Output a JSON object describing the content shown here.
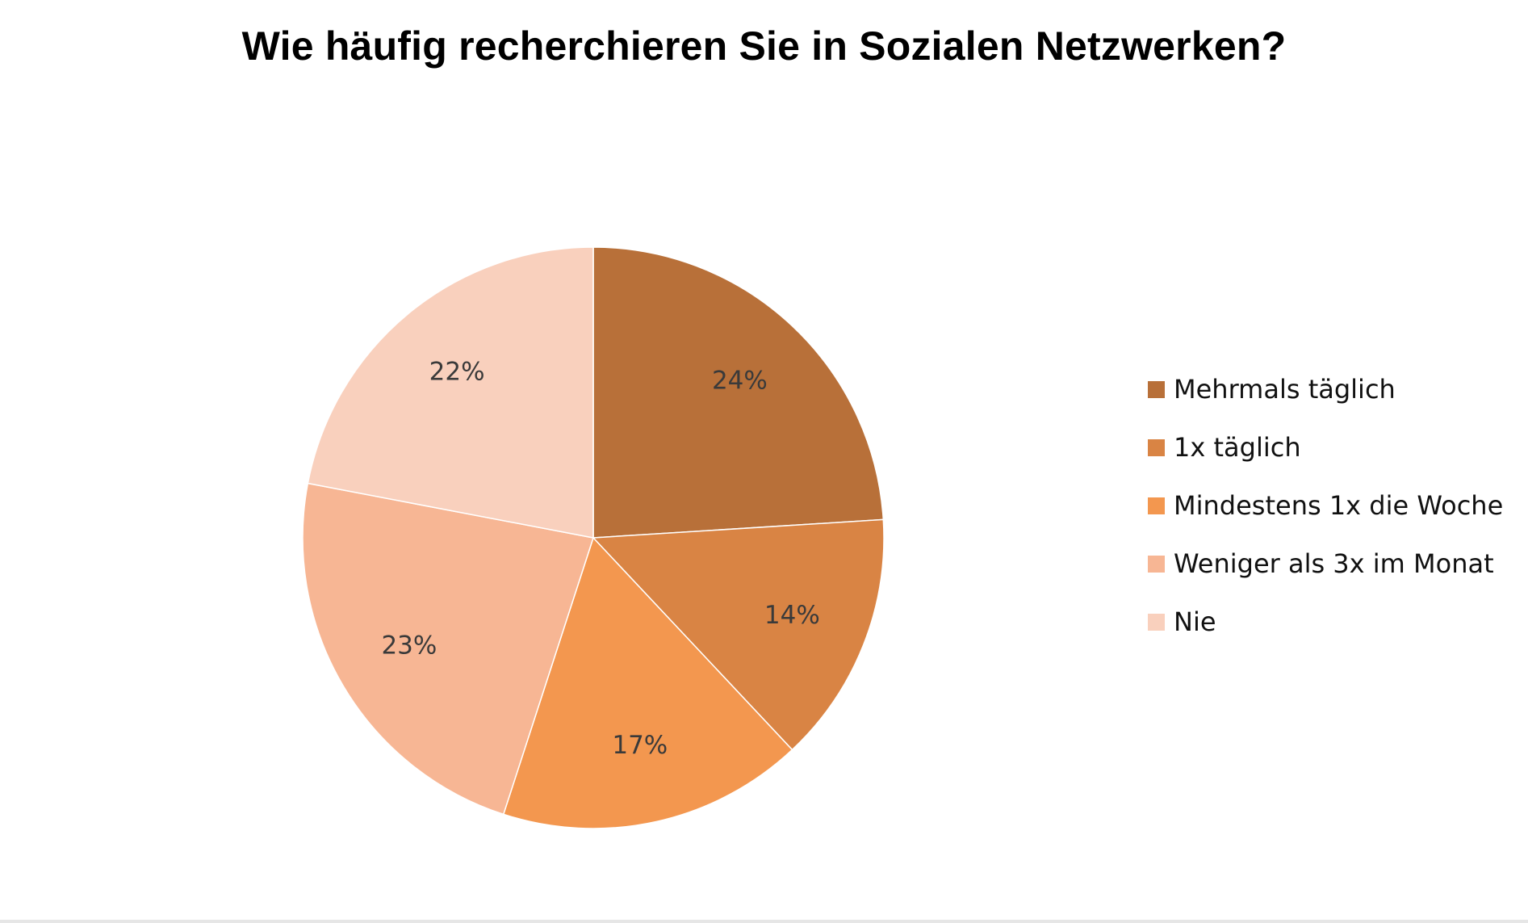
{
  "chart_data": {
    "type": "pie",
    "title": "Wie häufig recherchieren Sie in Sozialen Netzwerken?",
    "start_angle_deg": 0,
    "direction": "clockwise",
    "legend_position": "right",
    "slices": [
      {
        "label": "Mehrmals täglich",
        "value": 24,
        "display": "24%",
        "color": "#B87039"
      },
      {
        "label": "1x täglich",
        "value": 14,
        "display": "14%",
        "color": "#D98444"
      },
      {
        "label": "Mindestens 1x die Woche",
        "value": 17,
        "display": "17%",
        "color": "#F3974F"
      },
      {
        "label": "Weniger als 3x im Monat",
        "value": 23,
        "display": "23%",
        "color": "#F7B694"
      },
      {
        "label": "Nie",
        "value": 22,
        "display": "22%",
        "color": "#F9D0BD"
      }
    ]
  }
}
